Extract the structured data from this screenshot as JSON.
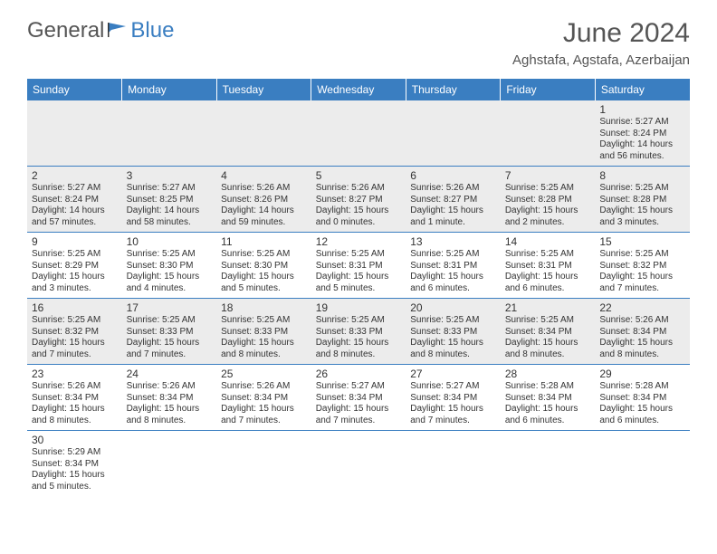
{
  "brand": {
    "general": "General",
    "blue": "Blue"
  },
  "title": "June 2024",
  "location": "Aghstafa, Agstafa, Azerbaijan",
  "colors": {
    "header_bg": "#3a7ec1",
    "header_text": "#ffffff",
    "cell_gray": "#ececec",
    "cell_white": "#ffffff",
    "border": "#3a7ec1",
    "text": "#333333",
    "title_text": "#555555"
  },
  "weekdays": [
    "Sunday",
    "Monday",
    "Tuesday",
    "Wednesday",
    "Thursday",
    "Friday",
    "Saturday"
  ],
  "weeks": [
    [
      null,
      null,
      null,
      null,
      null,
      null,
      {
        "n": "1",
        "sunrise": "Sunrise: 5:27 AM",
        "sunset": "Sunset: 8:24 PM",
        "daylight": "Daylight: 14 hours and 56 minutes."
      }
    ],
    [
      {
        "n": "2",
        "sunrise": "Sunrise: 5:27 AM",
        "sunset": "Sunset: 8:24 PM",
        "daylight": "Daylight: 14 hours and 57 minutes."
      },
      {
        "n": "3",
        "sunrise": "Sunrise: 5:27 AM",
        "sunset": "Sunset: 8:25 PM",
        "daylight": "Daylight: 14 hours and 58 minutes."
      },
      {
        "n": "4",
        "sunrise": "Sunrise: 5:26 AM",
        "sunset": "Sunset: 8:26 PM",
        "daylight": "Daylight: 14 hours and 59 minutes."
      },
      {
        "n": "5",
        "sunrise": "Sunrise: 5:26 AM",
        "sunset": "Sunset: 8:27 PM",
        "daylight": "Daylight: 15 hours and 0 minutes."
      },
      {
        "n": "6",
        "sunrise": "Sunrise: 5:26 AM",
        "sunset": "Sunset: 8:27 PM",
        "daylight": "Daylight: 15 hours and 1 minute."
      },
      {
        "n": "7",
        "sunrise": "Sunrise: 5:25 AM",
        "sunset": "Sunset: 8:28 PM",
        "daylight": "Daylight: 15 hours and 2 minutes."
      },
      {
        "n": "8",
        "sunrise": "Sunrise: 5:25 AM",
        "sunset": "Sunset: 8:28 PM",
        "daylight": "Daylight: 15 hours and 3 minutes."
      }
    ],
    [
      {
        "n": "9",
        "sunrise": "Sunrise: 5:25 AM",
        "sunset": "Sunset: 8:29 PM",
        "daylight": "Daylight: 15 hours and 3 minutes."
      },
      {
        "n": "10",
        "sunrise": "Sunrise: 5:25 AM",
        "sunset": "Sunset: 8:30 PM",
        "daylight": "Daylight: 15 hours and 4 minutes."
      },
      {
        "n": "11",
        "sunrise": "Sunrise: 5:25 AM",
        "sunset": "Sunset: 8:30 PM",
        "daylight": "Daylight: 15 hours and 5 minutes."
      },
      {
        "n": "12",
        "sunrise": "Sunrise: 5:25 AM",
        "sunset": "Sunset: 8:31 PM",
        "daylight": "Daylight: 15 hours and 5 minutes."
      },
      {
        "n": "13",
        "sunrise": "Sunrise: 5:25 AM",
        "sunset": "Sunset: 8:31 PM",
        "daylight": "Daylight: 15 hours and 6 minutes."
      },
      {
        "n": "14",
        "sunrise": "Sunrise: 5:25 AM",
        "sunset": "Sunset: 8:31 PM",
        "daylight": "Daylight: 15 hours and 6 minutes."
      },
      {
        "n": "15",
        "sunrise": "Sunrise: 5:25 AM",
        "sunset": "Sunset: 8:32 PM",
        "daylight": "Daylight: 15 hours and 7 minutes."
      }
    ],
    [
      {
        "n": "16",
        "sunrise": "Sunrise: 5:25 AM",
        "sunset": "Sunset: 8:32 PM",
        "daylight": "Daylight: 15 hours and 7 minutes."
      },
      {
        "n": "17",
        "sunrise": "Sunrise: 5:25 AM",
        "sunset": "Sunset: 8:33 PM",
        "daylight": "Daylight: 15 hours and 7 minutes."
      },
      {
        "n": "18",
        "sunrise": "Sunrise: 5:25 AM",
        "sunset": "Sunset: 8:33 PM",
        "daylight": "Daylight: 15 hours and 8 minutes."
      },
      {
        "n": "19",
        "sunrise": "Sunrise: 5:25 AM",
        "sunset": "Sunset: 8:33 PM",
        "daylight": "Daylight: 15 hours and 8 minutes."
      },
      {
        "n": "20",
        "sunrise": "Sunrise: 5:25 AM",
        "sunset": "Sunset: 8:33 PM",
        "daylight": "Daylight: 15 hours and 8 minutes."
      },
      {
        "n": "21",
        "sunrise": "Sunrise: 5:25 AM",
        "sunset": "Sunset: 8:34 PM",
        "daylight": "Daylight: 15 hours and 8 minutes."
      },
      {
        "n": "22",
        "sunrise": "Sunrise: 5:26 AM",
        "sunset": "Sunset: 8:34 PM",
        "daylight": "Daylight: 15 hours and 8 minutes."
      }
    ],
    [
      {
        "n": "23",
        "sunrise": "Sunrise: 5:26 AM",
        "sunset": "Sunset: 8:34 PM",
        "daylight": "Daylight: 15 hours and 8 minutes."
      },
      {
        "n": "24",
        "sunrise": "Sunrise: 5:26 AM",
        "sunset": "Sunset: 8:34 PM",
        "daylight": "Daylight: 15 hours and 8 minutes."
      },
      {
        "n": "25",
        "sunrise": "Sunrise: 5:26 AM",
        "sunset": "Sunset: 8:34 PM",
        "daylight": "Daylight: 15 hours and 7 minutes."
      },
      {
        "n": "26",
        "sunrise": "Sunrise: 5:27 AM",
        "sunset": "Sunset: 8:34 PM",
        "daylight": "Daylight: 15 hours and 7 minutes."
      },
      {
        "n": "27",
        "sunrise": "Sunrise: 5:27 AM",
        "sunset": "Sunset: 8:34 PM",
        "daylight": "Daylight: 15 hours and 7 minutes."
      },
      {
        "n": "28",
        "sunrise": "Sunrise: 5:28 AM",
        "sunset": "Sunset: 8:34 PM",
        "daylight": "Daylight: 15 hours and 6 minutes."
      },
      {
        "n": "29",
        "sunrise": "Sunrise: 5:28 AM",
        "sunset": "Sunset: 8:34 PM",
        "daylight": "Daylight: 15 hours and 6 minutes."
      }
    ],
    [
      {
        "n": "30",
        "sunrise": "Sunrise: 5:29 AM",
        "sunset": "Sunset: 8:34 PM",
        "daylight": "Daylight: 15 hours and 5 minutes."
      },
      null,
      null,
      null,
      null,
      null,
      null
    ]
  ],
  "row_shade": [
    "gray",
    "gray",
    "white",
    "gray",
    "white",
    "white"
  ]
}
